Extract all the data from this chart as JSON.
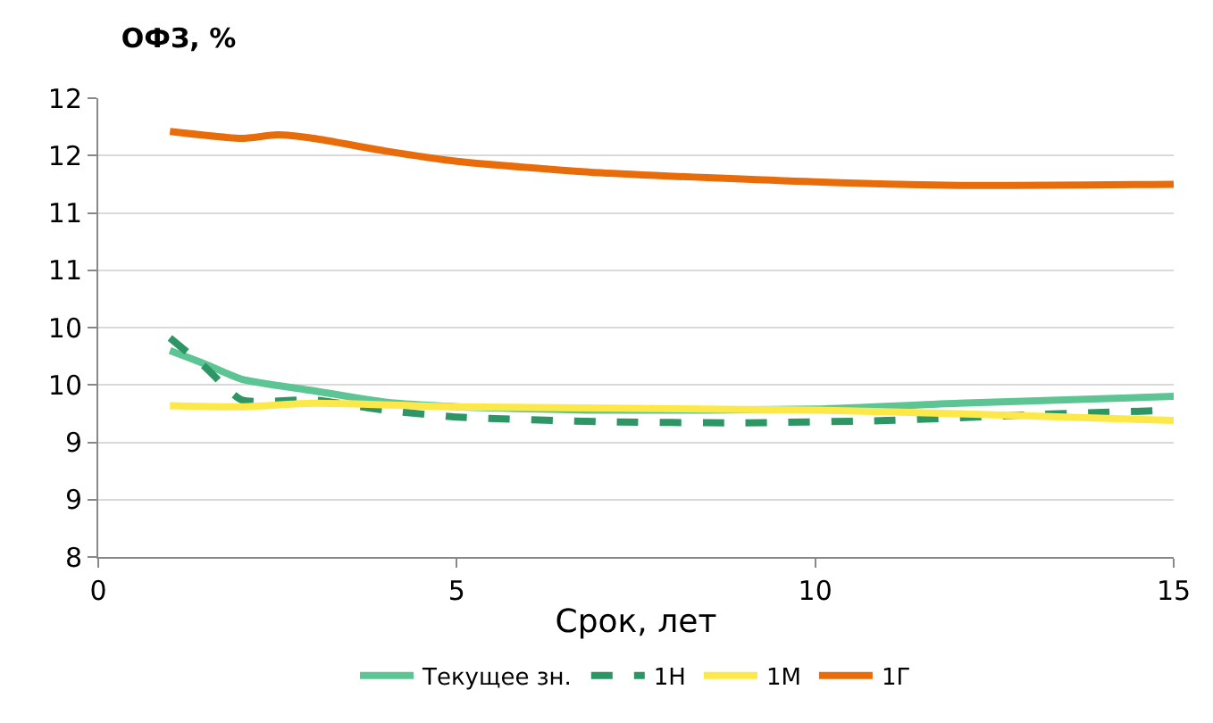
{
  "chart_data": {
    "type": "line",
    "title": "ОФЗ, %",
    "xlabel": "Срок, лет",
    "xlim": [
      0,
      15
    ],
    "xticks": [
      0,
      5,
      10,
      15
    ],
    "ylim": [
      8,
      12
    ],
    "yticks": [
      8,
      {
        "value": 8.5,
        "label": "9"
      },
      9,
      {
        "value": 9.5,
        "label": "10"
      },
      10,
      {
        "value": 10.5,
        "label": "11"
      },
      11,
      {
        "value": 11.5,
        "label": "12"
      },
      12
    ],
    "grid": "y",
    "legend": "bottom",
    "series": [
      {
        "name": "Текущее зн.",
        "color": "#5cc593",
        "line_style": "solid",
        "x": [
          1,
          1.5,
          2,
          3,
          4,
          5,
          7,
          10,
          12,
          15
        ],
        "values": [
          9.8,
          9.68,
          9.55,
          9.45,
          9.35,
          9.31,
          9.28,
          9.29,
          9.34,
          9.4
        ]
      },
      {
        "name": "1Н",
        "color": "#2e9664",
        "line_style": "dashed",
        "x": [
          1,
          1.5,
          2,
          3,
          4,
          5,
          7,
          9,
          11,
          13,
          15
        ],
        "values": [
          9.91,
          9.65,
          9.37,
          9.37,
          9.28,
          9.22,
          9.18,
          9.17,
          9.19,
          9.24,
          9.28
        ]
      },
      {
        "name": "1М",
        "color": "#fde84a",
        "line_style": "solid",
        "x": [
          1,
          2,
          3,
          5,
          10,
          12,
          15
        ],
        "values": [
          9.32,
          9.31,
          9.34,
          9.31,
          9.28,
          9.25,
          9.19
        ]
      },
      {
        "name": "1Г",
        "color": "#e96c0b",
        "line_style": "solid",
        "x": [
          1,
          2,
          2.5,
          3,
          4,
          5,
          7,
          10,
          12,
          15
        ],
        "values": [
          11.71,
          11.65,
          11.68,
          11.65,
          11.54,
          11.45,
          11.35,
          11.27,
          11.24,
          11.25
        ]
      }
    ]
  }
}
